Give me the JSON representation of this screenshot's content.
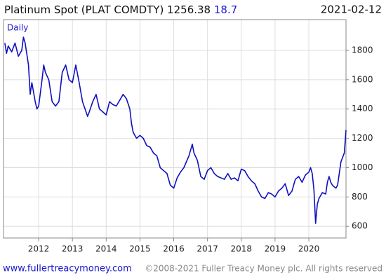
{
  "chart_data": {
    "type": "line",
    "title": "Platinum Spot (PLAT COMDTY) 1256.38",
    "change": 18.7,
    "date": "2021-02-12",
    "frequency": "Daily",
    "source_url": "www.fullertreacymoney.com",
    "copyright": "©2008-2021 Fuller Treacy Money plc. All rights reserved",
    "xlim": [
      2010.96,
      2021.1
    ],
    "xticks": [
      2012,
      2013,
      2014,
      2015,
      2016,
      2017,
      2018,
      2019,
      2020
    ],
    "ylim": [
      520,
      2010
    ],
    "yticks": [
      600,
      800,
      1000,
      1200,
      1400,
      1600,
      1800
    ],
    "grid": true,
    "series": [
      {
        "name": "Platinum Spot",
        "color": "#1010c0",
        "x": [
          2011.0,
          2011.05,
          2011.1,
          2011.2,
          2011.3,
          2011.4,
          2011.5,
          2011.55,
          2011.6,
          2011.7,
          2011.75,
          2011.8,
          2011.9,
          2011.95,
          2012.0,
          2012.1,
          2012.15,
          2012.2,
          2012.3,
          2012.4,
          2012.5,
          2012.6,
          2012.7,
          2012.8,
          2012.9,
          2013.0,
          2013.1,
          2013.2,
          2013.3,
          2013.45,
          2013.5,
          2013.6,
          2013.7,
          2013.8,
          2013.9,
          2014.0,
          2014.1,
          2014.2,
          2014.3,
          2014.4,
          2014.5,
          2014.6,
          2014.7,
          2014.75,
          2014.8,
          2014.9,
          2015.0,
          2015.1,
          2015.2,
          2015.3,
          2015.4,
          2015.5,
          2015.6,
          2015.7,
          2015.8,
          2015.9,
          2016.0,
          2016.1,
          2016.2,
          2016.3,
          2016.45,
          2016.55,
          2016.6,
          2016.7,
          2016.8,
          2016.9,
          2017.0,
          2017.1,
          2017.2,
          2017.3,
          2017.4,
          2017.5,
          2017.6,
          2017.7,
          2017.8,
          2017.9,
          2018.0,
          2018.1,
          2018.2,
          2018.3,
          2018.4,
          2018.5,
          2018.6,
          2018.7,
          2018.8,
          2018.9,
          2019.0,
          2019.1,
          2019.2,
          2019.3,
          2019.4,
          2019.5,
          2019.6,
          2019.7,
          2019.8,
          2019.9,
          2020.0,
          2020.05,
          2020.1,
          2020.15,
          2020.2,
          2020.25,
          2020.3,
          2020.4,
          2020.5,
          2020.55,
          2020.6,
          2020.65,
          2020.7,
          2020.8,
          2020.85,
          2020.9,
          2020.95,
          2021.0,
          2021.05,
          2021.1
        ],
        "values": [
          1850,
          1780,
          1830,
          1790,
          1850,
          1760,
          1800,
          1890,
          1850,
          1700,
          1500,
          1580,
          1450,
          1400,
          1420,
          1600,
          1700,
          1650,
          1600,
          1450,
          1420,
          1450,
          1650,
          1700,
          1600,
          1580,
          1700,
          1580,
          1450,
          1350,
          1380,
          1450,
          1500,
          1400,
          1380,
          1360,
          1450,
          1430,
          1420,
          1460,
          1500,
          1470,
          1400,
          1300,
          1240,
          1200,
          1220,
          1200,
          1150,
          1140,
          1100,
          1080,
          1000,
          980,
          960,
          880,
          860,
          930,
          970,
          1000,
          1080,
          1160,
          1100,
          1050,
          940,
          920,
          980,
          1000,
          960,
          940,
          930,
          920,
          960,
          920,
          930,
          910,
          990,
          980,
          940,
          910,
          890,
          840,
          800,
          790,
          830,
          820,
          800,
          840,
          860,
          890,
          810,
          840,
          920,
          940,
          900,
          950,
          970,
          1000,
          960,
          850,
          620,
          750,
          790,
          830,
          820,
          900,
          940,
          900,
          880,
          860,
          880,
          960,
          1040,
          1070,
          1100,
          1256
        ]
      }
    ]
  }
}
